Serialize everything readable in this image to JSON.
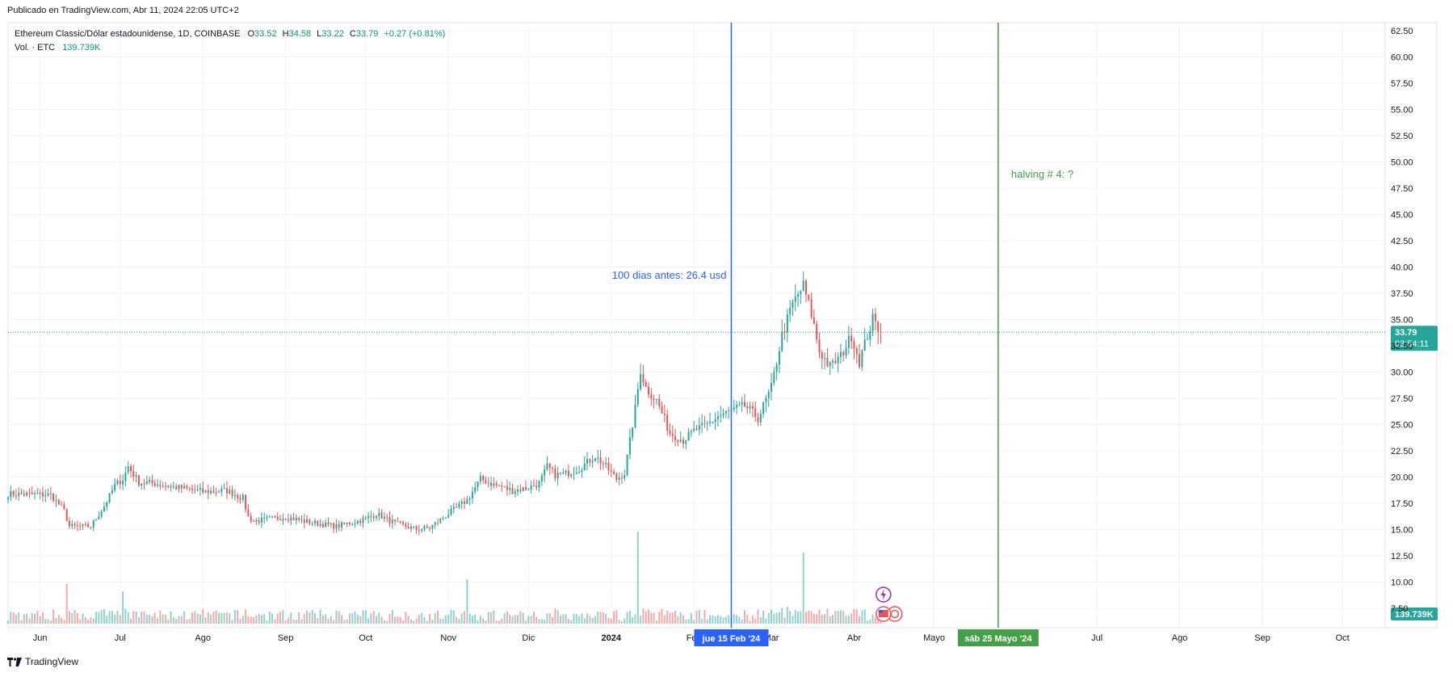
{
  "header": {
    "published": "Publicado en TradingView.com, Abr 11, 2024 22:05 UTC+2"
  },
  "legend": {
    "symbol": "Ethereum Classic/Dólar estadounidense, 1D, COINBASE",
    "o_label": "O",
    "o": "33.52",
    "h_label": "H",
    "h": "34.58",
    "l_label": "L",
    "l": "33.22",
    "c_label": "C",
    "c": "33.79",
    "change": "+0.27 (+0.81%)",
    "vol_label": "Vol. · ETC",
    "vol": "139.739K"
  },
  "price_badge": {
    "price": "33.79",
    "countdown": "03:54:11"
  },
  "volume_badge": "139.739K",
  "annotations": {
    "blue_line_text": "100 dias antes: 26.4 usd",
    "blue_line_date": "jue 15 Feb '24",
    "green_line_text": "halving # 4: ?",
    "green_line_date": "sáb 25 Mayo '24"
  },
  "footer": {
    "brand": "TradingView"
  },
  "colors": {
    "up": "#26a69a",
    "down": "#ef5350",
    "blue": "#2962ff",
    "green": "#43a047",
    "price_line": "#26a69a"
  },
  "chart_data": {
    "type": "candlestick",
    "y_ticks": [
      "62.50",
      "60.00",
      "57.50",
      "55.00",
      "52.50",
      "50.00",
      "47.50",
      "45.00",
      "42.50",
      "40.00",
      "37.50",
      "35.00",
      "32.50",
      "30.00",
      "27.50",
      "25.00",
      "22.50",
      "20.00",
      "17.50",
      "15.00",
      "12.50",
      "10.00",
      "7.50"
    ],
    "ylim": [
      7.5,
      62.5
    ],
    "x_ticks": [
      {
        "label": "Jun",
        "date": "2023-06-01"
      },
      {
        "label": "Jul",
        "date": "2023-07-01"
      },
      {
        "label": "Ago",
        "date": "2023-08-01"
      },
      {
        "label": "Sep",
        "date": "2023-09-01"
      },
      {
        "label": "Oct",
        "date": "2023-10-01"
      },
      {
        "label": "Nov",
        "date": "2023-11-01"
      },
      {
        "label": "Dic",
        "date": "2023-12-01"
      },
      {
        "label": "2024",
        "date": "2024-01-01",
        "bold": true
      },
      {
        "label": "Feb",
        "date": "2024-02-01"
      },
      {
        "label": "Mar",
        "date": "2024-03-01"
      },
      {
        "label": "Abr",
        "date": "2024-04-01"
      },
      {
        "label": "Mayo",
        "date": "2024-05-01"
      },
      {
        "label": "Jul",
        "date": "2024-07-01"
      },
      {
        "label": "Ago",
        "date": "2024-08-01"
      },
      {
        "label": "Sep",
        "date": "2024-09-01"
      },
      {
        "label": "Oct",
        "date": "2024-10-01"
      }
    ],
    "x_range": [
      "2023-05-20",
      "2024-10-17"
    ],
    "vertical_lines": [
      {
        "date": "2024-02-15",
        "color": "#2962ff"
      },
      {
        "date": "2024-05-25",
        "color": "#43a047"
      }
    ],
    "last_price": 33.79,
    "close_points": [
      [
        "2023-05-20",
        18.4
      ],
      [
        "2023-06-05",
        18.3
      ],
      [
        "2023-06-10",
        16.8
      ],
      [
        "2023-06-12",
        15.3
      ],
      [
        "2023-06-20",
        15.3
      ],
      [
        "2023-06-25",
        17.2
      ],
      [
        "2023-06-29",
        19.2
      ],
      [
        "2023-07-02",
        19.8
      ],
      [
        "2023-07-04",
        21.0
      ],
      [
        "2023-07-08",
        19.5
      ],
      [
        "2023-07-14",
        19.4
      ],
      [
        "2023-07-20",
        19.1
      ],
      [
        "2023-08-01",
        18.6
      ],
      [
        "2023-08-10",
        18.7
      ],
      [
        "2023-08-16",
        18.0
      ],
      [
        "2023-08-18",
        16.2
      ],
      [
        "2023-08-20",
        15.8
      ],
      [
        "2023-09-01",
        16.2
      ],
      [
        "2023-09-10",
        15.7
      ],
      [
        "2023-09-20",
        15.3
      ],
      [
        "2023-10-01",
        16.0
      ],
      [
        "2023-10-05",
        16.5
      ],
      [
        "2023-10-12",
        15.6
      ],
      [
        "2023-10-20",
        15.0
      ],
      [
        "2023-10-25",
        15.2
      ],
      [
        "2023-11-01",
        16.5
      ],
      [
        "2023-11-08",
        17.8
      ],
      [
        "2023-11-13",
        19.8
      ],
      [
        "2023-11-18",
        19.3
      ],
      [
        "2023-11-25",
        18.7
      ],
      [
        "2023-12-01",
        19.0
      ],
      [
        "2023-12-05",
        19.4
      ],
      [
        "2023-12-08",
        21.0
      ],
      [
        "2023-12-11",
        20.2
      ],
      [
        "2023-12-15",
        20.3
      ],
      [
        "2023-12-20",
        20.8
      ],
      [
        "2023-12-26",
        22.0
      ],
      [
        "2023-12-30",
        21.0
      ],
      [
        "2024-01-03",
        19.8
      ],
      [
        "2024-01-06",
        20.4
      ],
      [
        "2024-01-10",
        26.5
      ],
      [
        "2024-01-12",
        30.2
      ],
      [
        "2024-01-14",
        28.5
      ],
      [
        "2024-01-18",
        27.3
      ],
      [
        "2024-01-23",
        24.2
      ],
      [
        "2024-01-28",
        23.5
      ],
      [
        "2024-02-01",
        24.4
      ],
      [
        "2024-02-06",
        25.0
      ],
      [
        "2024-02-10",
        25.8
      ],
      [
        "2024-02-15",
        26.3
      ],
      [
        "2024-02-20",
        26.8
      ],
      [
        "2024-02-25",
        25.6
      ],
      [
        "2024-03-01",
        28.5
      ],
      [
        "2024-03-05",
        33.5
      ],
      [
        "2024-03-09",
        36.5
      ],
      [
        "2024-03-13",
        38.2
      ],
      [
        "2024-03-16",
        35.5
      ],
      [
        "2024-03-19",
        32.0
      ],
      [
        "2024-03-23",
        30.5
      ],
      [
        "2024-03-27",
        31.5
      ],
      [
        "2024-03-31",
        33.5
      ],
      [
        "2024-04-03",
        31.0
      ],
      [
        "2024-04-06",
        33.5
      ],
      [
        "2024-04-08",
        35.0
      ],
      [
        "2024-04-11",
        33.79
      ]
    ],
    "volume_spikes": [
      [
        "2024-01-11",
        11.4
      ],
      [
        "2024-03-13",
        8.8
      ],
      [
        "2023-06-11",
        4.9
      ],
      [
        "2023-07-02",
        4.0
      ],
      [
        "2023-11-08",
        5.5
      ]
    ]
  }
}
